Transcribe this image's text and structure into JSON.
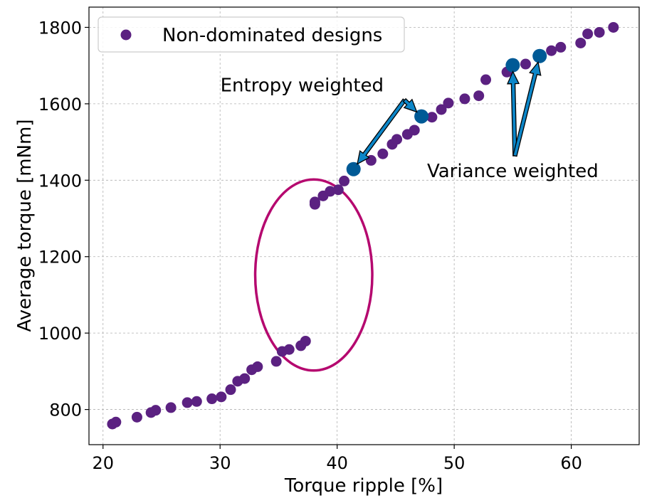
{
  "chart_data": {
    "type": "scatter",
    "xlabel": "Torque ripple [%]",
    "ylabel": "Average torque [mNm]",
    "xlim": [
      18.8,
      65.8
    ],
    "ylim": [
      708,
      1853
    ],
    "xticks": [
      20,
      30,
      40,
      50,
      60
    ],
    "yticks": [
      800,
      1000,
      1200,
      1400,
      1600,
      1800
    ],
    "grid": true,
    "legend": {
      "placement": "top-left",
      "entries": [
        "Non-dominated designs"
      ]
    },
    "colors": {
      "points": "#5b2181",
      "highlight": "#005a96",
      "arrow": "#0c86c8",
      "ellipse": "#b5086f"
    },
    "series": [
      {
        "name": "Non-dominated designs",
        "points": [
          [
            20.8,
            762
          ],
          [
            21.1,
            767
          ],
          [
            22.9,
            780
          ],
          [
            24.1,
            792
          ],
          [
            24.5,
            798
          ],
          [
            25.8,
            805
          ],
          [
            27.2,
            818
          ],
          [
            28.0,
            821
          ],
          [
            29.3,
            828
          ],
          [
            30.1,
            833
          ],
          [
            30.9,
            852
          ],
          [
            31.5,
            874
          ],
          [
            32.1,
            881
          ],
          [
            32.7,
            904
          ],
          [
            33.2,
            912
          ],
          [
            34.8,
            926
          ],
          [
            35.3,
            952
          ],
          [
            35.9,
            957
          ],
          [
            36.9,
            967
          ],
          [
            37.3,
            979
          ],
          [
            38.1,
            1337
          ],
          [
            38.1,
            1343
          ],
          [
            38.8,
            1359
          ],
          [
            39.4,
            1371
          ],
          [
            40.1,
            1375
          ],
          [
            40.6,
            1398
          ],
          [
            42.9,
            1452
          ],
          [
            43.9,
            1469
          ],
          [
            44.7,
            1494
          ],
          [
            45.1,
            1507
          ],
          [
            46.0,
            1520
          ],
          [
            46.6,
            1531
          ],
          [
            48.1,
            1565
          ],
          [
            48.9,
            1585
          ],
          [
            49.5,
            1602
          ],
          [
            50.9,
            1613
          ],
          [
            52.1,
            1621
          ],
          [
            52.7,
            1663
          ],
          [
            54.5,
            1683
          ],
          [
            56.1,
            1704
          ],
          [
            58.3,
            1739
          ],
          [
            59.1,
            1748
          ],
          [
            60.8,
            1759
          ],
          [
            61.4,
            1783
          ],
          [
            62.4,
            1787
          ],
          [
            63.6,
            1800
          ]
        ]
      },
      {
        "name": "",
        "points": [
          [
            41.4,
            1429
          ],
          [
            47.2,
            1567
          ],
          [
            55.0,
            1701
          ],
          [
            57.3,
            1725
          ]
        ]
      }
    ],
    "annotations": [
      {
        "text": "Entropy weighted",
        "anchor": [
          37.0,
          1632
        ],
        "targets": [
          [
            41.4,
            1429
          ],
          [
            47.2,
            1567
          ]
        ]
      },
      {
        "text": "Variance weighted",
        "anchor": [
          55.0,
          1408
        ],
        "targets": [
          [
            55.0,
            1701
          ],
          [
            57.3,
            1725
          ]
        ]
      }
    ],
    "ellipse": {
      "center": [
        38.0,
        1152
      ],
      "radius_x": 5.0,
      "radius_y": 250
    }
  }
}
